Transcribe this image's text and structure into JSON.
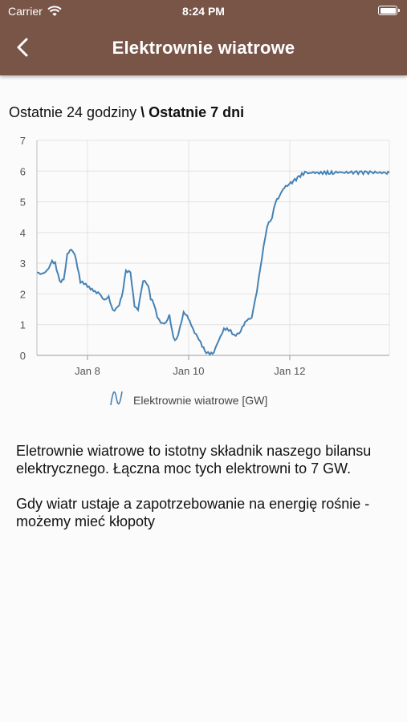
{
  "status_bar": {
    "carrier": "Carrier",
    "time": "8:24 PM"
  },
  "header": {
    "title": "Elektrownie wiatrowe"
  },
  "range_selector": {
    "option_24h": "Ostatnie 24 godziny",
    "separator": " \\ ",
    "option_7d": "Ostatnie 7 dni",
    "selected": "option_7d"
  },
  "chart_data": {
    "type": "line",
    "title": "",
    "xlabel": "",
    "ylabel": "",
    "ylim": [
      0,
      7
    ],
    "xlim_days": [
      7.0,
      13.97
    ],
    "x_unit": "day of January",
    "y_ticks": [
      "0",
      "1",
      "2",
      "3",
      "4",
      "5",
      "6",
      "7"
    ],
    "x_ticks": [
      {
        "day": 8,
        "label": "Jan 8"
      },
      {
        "day": 10,
        "label": "Jan 10"
      },
      {
        "day": 12,
        "label": "Jan 12"
      }
    ],
    "grid": true,
    "legend_position": "bottom-center",
    "color": "#4682b4",
    "series": [
      {
        "name": "Elektrownie wiatrowe [GW]",
        "x": [
          7.0,
          7.1,
          7.2,
          7.3,
          7.36,
          7.45,
          7.53,
          7.6,
          7.68,
          7.75,
          7.8,
          7.86,
          7.93,
          8.0,
          8.12,
          8.24,
          8.33,
          8.42,
          8.5,
          8.6,
          8.68,
          8.76,
          8.85,
          8.93,
          9.0,
          9.1,
          9.2,
          9.25,
          9.31,
          9.38,
          9.45,
          9.55,
          9.62,
          9.7,
          9.76,
          9.83,
          9.9,
          9.97,
          10.05,
          10.12,
          10.2,
          10.27,
          10.35,
          10.42,
          10.5,
          10.56,
          10.63,
          10.7,
          10.76,
          10.83,
          10.9,
          11.0,
          11.12,
          11.25,
          11.35,
          11.45,
          11.55,
          11.65,
          11.72,
          11.8,
          11.87,
          11.92,
          12.02,
          12.1,
          12.18,
          12.24,
          12.33,
          12.4,
          12.5,
          12.58,
          12.65,
          12.72,
          12.8,
          12.88,
          12.95,
          13.02,
          13.12,
          13.22,
          13.32,
          13.42,
          13.52,
          13.62,
          13.72,
          13.82,
          13.92,
          13.97
        ],
        "y": [
          2.7,
          2.65,
          2.75,
          3.05,
          3.0,
          2.4,
          2.45,
          3.3,
          3.45,
          3.3,
          2.9,
          2.4,
          2.35,
          2.25,
          2.1,
          2.0,
          1.8,
          1.9,
          1.45,
          1.55,
          1.9,
          2.75,
          2.7,
          1.6,
          1.5,
          2.45,
          2.3,
          1.85,
          1.7,
          1.25,
          1.05,
          1.05,
          1.3,
          0.55,
          0.5,
          0.9,
          1.4,
          1.3,
          1.0,
          0.75,
          0.55,
          0.3,
          0.1,
          0.05,
          0.1,
          0.35,
          0.6,
          0.85,
          0.85,
          0.8,
          0.65,
          0.7,
          1.1,
          1.25,
          2.1,
          3.2,
          4.2,
          4.5,
          5.0,
          5.2,
          5.4,
          5.5,
          5.6,
          5.7,
          5.8,
          5.9,
          5.95,
          5.95,
          5.95,
          5.95,
          5.95,
          5.95,
          5.95,
          5.95,
          5.95,
          5.95,
          5.95,
          5.95,
          5.95,
          5.95,
          5.95,
          5.95,
          5.95,
          5.95,
          5.95,
          5.95
        ]
      }
    ]
  },
  "description": {
    "paragraph1": "Eletrownie wiatrowe to istotny składnik naszego bilansu elektrycznego. Łączna moc tych elektrowni to 7 GW.",
    "paragraph2": "Gdy wiatr ustaje a zapotrzebowanie na energię rośnie - możemy mieć kłopoty"
  },
  "icons": {
    "back": "chevron-left-icon",
    "wifi": "wifi-icon",
    "battery": "battery-icon",
    "legend": "line-series-icon"
  }
}
